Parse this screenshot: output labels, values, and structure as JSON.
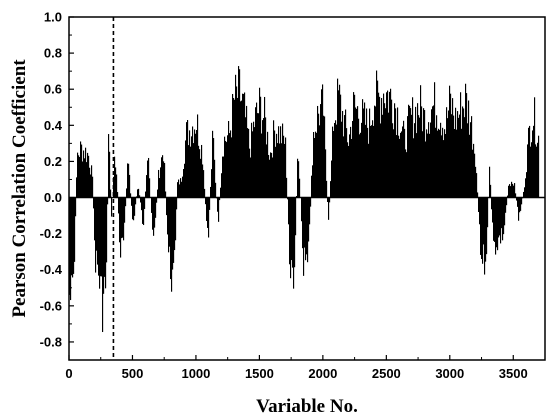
{
  "chart_data": {
    "type": "bar",
    "title": "",
    "xlabel": "Variable No.",
    "ylabel": "Pearson Correlation Coefficient",
    "xlim": [
      0,
      3750
    ],
    "ylim": [
      -0.9,
      1.0
    ],
    "xticks": [
      0,
      500,
      1000,
      1500,
      2000,
      2500,
      3000,
      3500
    ],
    "yticks": [
      -0.8,
      -0.6,
      -0.4,
      -0.2,
      0.0,
      0.2,
      0.4,
      0.6,
      0.8,
      1.0
    ],
    "ytick_labels": [
      "-0.8",
      "-0.6",
      "-0.4",
      "-0.2",
      "0.0",
      "0.2",
      "0.4",
      "0.6",
      "0.8",
      "1.0"
    ],
    "grid": false,
    "bar_color": "#000000",
    "vertical_reference_line": {
      "x": 350,
      "style": "dashed"
    },
    "series_envelope": [
      [
        0,
        -0.7
      ],
      [
        20,
        -0.72
      ],
      [
        40,
        -0.45
      ],
      [
        60,
        0.3
      ],
      [
        90,
        0.35
      ],
      [
        120,
        0.33
      ],
      [
        150,
        0.3
      ],
      [
        180,
        0.15
      ],
      [
        200,
        -0.4
      ],
      [
        230,
        -0.55
      ],
      [
        260,
        -0.75
      ],
      [
        290,
        -0.6
      ],
      [
        310,
        0.55
      ],
      [
        330,
        -0.2
      ],
      [
        350,
        0.25
      ],
      [
        370,
        0.2
      ],
      [
        400,
        -0.4
      ],
      [
        430,
        -0.3
      ],
      [
        460,
        0.28
      ],
      [
        500,
        -0.2
      ],
      [
        540,
        0.1
      ],
      [
        580,
        -0.2
      ],
      [
        620,
        0.3
      ],
      [
        660,
        -0.35
      ],
      [
        700,
        0.15
      ],
      [
        740,
        0.35
      ],
      [
        780,
        -0.4
      ],
      [
        820,
        -0.65
      ],
      [
        850,
        0.1
      ],
      [
        880,
        0.12
      ],
      [
        920,
        0.45
      ],
      [
        960,
        0.5
      ],
      [
        1000,
        0.55
      ],
      [
        1050,
        0.3
      ],
      [
        1090,
        -0.35
      ],
      [
        1130,
        0.45
      ],
      [
        1170,
        -0.2
      ],
      [
        1210,
        0.4
      ],
      [
        1260,
        0.45
      ],
      [
        1300,
        0.7
      ],
      [
        1340,
        0.75
      ],
      [
        1380,
        0.6
      ],
      [
        1420,
        0.35
      ],
      [
        1460,
        0.55
      ],
      [
        1500,
        0.65
      ],
      [
        1540,
        0.55
      ],
      [
        1580,
        0.3
      ],
      [
        1620,
        0.5
      ],
      [
        1660,
        0.45
      ],
      [
        1700,
        0.4
      ],
      [
        1740,
        -0.55
      ],
      [
        1770,
        -0.68
      ],
      [
        1800,
        0.45
      ],
      [
        1840,
        -0.45
      ],
      [
        1880,
        -0.5
      ],
      [
        1920,
        0.45
      ],
      [
        1960,
        0.6
      ],
      [
        2000,
        0.65
      ],
      [
        2040,
        -0.2
      ],
      [
        2080,
        0.55
      ],
      [
        2120,
        0.72
      ],
      [
        2160,
        0.55
      ],
      [
        2200,
        0.4
      ],
      [
        2240,
        0.65
      ],
      [
        2280,
        0.6
      ],
      [
        2320,
        0.55
      ],
      [
        2360,
        0.5
      ],
      [
        2400,
        0.72
      ],
      [
        2440,
        0.7
      ],
      [
        2480,
        0.76
      ],
      [
        2520,
        0.72
      ],
      [
        2560,
        0.68
      ],
      [
        2600,
        0.55
      ],
      [
        2640,
        0.4
      ],
      [
        2680,
        0.55
      ],
      [
        2720,
        0.6
      ],
      [
        2760,
        0.65
      ],
      [
        2800,
        0.55
      ],
      [
        2840,
        0.62
      ],
      [
        2880,
        0.66
      ],
      [
        2920,
        0.6
      ],
      [
        2960,
        0.5
      ],
      [
        3000,
        0.68
      ],
      [
        3040,
        0.55
      ],
      [
        3080,
        0.62
      ],
      [
        3120,
        0.7
      ],
      [
        3160,
        0.55
      ],
      [
        3200,
        0.3
      ],
      [
        3240,
        -0.45
      ],
      [
        3280,
        -0.48
      ],
      [
        3310,
        0.2
      ],
      [
        3340,
        -0.35
      ],
      [
        3380,
        -0.3
      ],
      [
        3420,
        -0.25
      ],
      [
        3460,
        0.1
      ],
      [
        3500,
        0.12
      ],
      [
        3540,
        -0.15
      ],
      [
        3580,
        0.05
      ],
      [
        3620,
        0.45
      ],
      [
        3650,
        0.6
      ],
      [
        3680,
        0.5
      ],
      [
        3700,
        0.4
      ]
    ]
  }
}
